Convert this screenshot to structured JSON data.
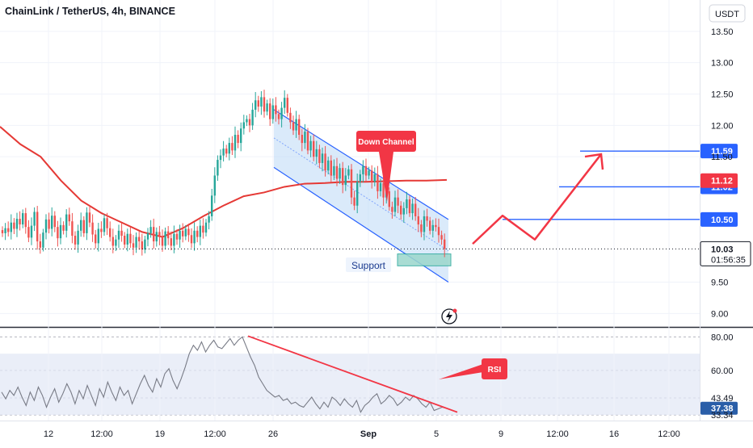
{
  "header": {
    "symbol": "ChainLink / TetherUS, 4h, BINANCE",
    "currency_button": "USDT"
  },
  "colors": {
    "up": "#26a69a",
    "down": "#ef5350",
    "ma": "#e53935",
    "channel": "#2962ff",
    "hline": "#2962ff",
    "arrow": "#f23645",
    "label_blue": "#2962ff",
    "label_red": "#f23645",
    "rsi": "#787b86"
  },
  "chart_data": [
    {
      "type": "candlestick",
      "title": "ChainLink / TetherUS, 4h, BINANCE",
      "ylim": [
        8.85,
        14.0
      ],
      "y_ticks": [
        "13.50",
        "13.00",
        "12.50",
        "12.00",
        "11.50",
        "9.50",
        "9.00"
      ],
      "x_ticks": [
        "12",
        "12:00",
        "19",
        "12:00",
        "26",
        "Sep",
        "5",
        "9",
        "12:00",
        "16",
        "12:00"
      ],
      "candles_close": [
        10.28,
        10.36,
        10.3,
        10.45,
        10.35,
        10.51,
        10.42,
        10.6,
        10.38,
        10.21,
        10.4,
        10.62,
        10.15,
        10.05,
        10.29,
        10.5,
        10.35,
        10.56,
        10.38,
        10.2,
        10.41,
        10.32,
        10.58,
        10.47,
        10.24,
        10.1,
        10.32,
        10.49,
        10.28,
        10.61,
        10.45,
        10.26,
        10.12,
        10.35,
        10.3,
        10.52,
        10.36,
        10.22,
        10.08,
        10.18,
        10.32,
        10.24,
        10.1,
        10.27,
        10.12,
        10.05,
        10.22,
        10.15,
        10.02,
        10.18,
        10.28,
        10.38,
        10.15,
        10.3,
        10.22,
        10.08,
        10.31,
        10.2,
        10.08,
        10.27,
        10.18,
        10.32,
        10.23,
        10.35,
        10.25,
        10.12,
        10.32,
        10.22,
        10.4,
        10.29,
        10.45,
        10.55,
        10.88,
        11.2,
        11.45,
        11.52,
        11.63,
        11.55,
        11.72,
        11.6,
        11.85,
        11.72,
        11.95,
        12.05,
        12.1,
        12.0,
        12.25,
        12.4,
        12.3,
        12.45,
        12.22,
        12.35,
        12.1,
        12.32,
        12.18,
        12.1,
        12.28,
        12.44,
        12.2,
        12.05,
        11.92,
        12.1,
        11.85,
        11.72,
        11.9,
        11.6,
        11.75,
        11.5,
        11.62,
        11.4,
        11.55,
        11.28,
        11.44,
        11.2,
        11.35,
        11.15,
        11.32,
        11.05,
        11.2,
        11.3,
        10.85,
        10.72,
        11.1,
        11.22,
        11.35,
        11.2,
        11.28,
        11.1,
        11.22,
        10.95,
        11.08,
        10.85,
        10.95,
        10.7,
        10.62,
        10.85,
        10.72,
        10.58,
        10.68,
        10.82,
        10.6,
        10.75,
        10.55,
        10.42,
        10.3,
        10.55,
        10.48,
        10.32,
        10.41,
        10.38,
        10.25,
        10.18,
        10.03
      ],
      "moving_average": [
        [
          0,
          11.98
        ],
        [
          20,
          11.7
        ],
        [
          40,
          11.5
        ],
        [
          60,
          11.12
        ],
        [
          80,
          10.8
        ],
        [
          100,
          10.6
        ],
        [
          120,
          10.45
        ],
        [
          140,
          10.3
        ],
        [
          160,
          10.22
        ],
        [
          180,
          10.36
        ],
        [
          200,
          10.55
        ],
        [
          220,
          10.72
        ],
        [
          240,
          10.87
        ],
        [
          260,
          10.93
        ],
        [
          280,
          11.02
        ],
        [
          300,
          11.07
        ],
        [
          320,
          11.08
        ],
        [
          340,
          11.1
        ],
        [
          360,
          11.1
        ],
        [
          380,
          11.11
        ],
        [
          400,
          11.12
        ],
        [
          420,
          11.12
        ],
        [
          440,
          11.13
        ]
      ],
      "annotations": [
        {
          "kind": "callout",
          "text": "Down Channel"
        },
        {
          "kind": "zone-label",
          "text": "Support"
        }
      ],
      "levels": [
        {
          "value": 11.59,
          "label": "11.59",
          "color": "#2962ff"
        },
        {
          "value": 11.02,
          "label": "11.02",
          "color": "#2962ff"
        },
        {
          "value": 10.5,
          "label": "10.50",
          "color": "#2962ff"
        }
      ],
      "price_badges": [
        {
          "value": 11.12,
          "label": "11.12",
          "color": "#f23645"
        },
        {
          "value": 10.03,
          "label": "10.03",
          "sub": "01:56:35",
          "color": "#ffffff"
        }
      ],
      "projection": [
        [
          10.11,
          0
        ],
        [
          10.56,
          1
        ],
        [
          10.18,
          2
        ],
        [
          11.54,
          3
        ]
      ]
    },
    {
      "type": "line",
      "title": "RSI",
      "ylim": [
        30,
        85
      ],
      "y_ticks": [
        "80.00",
        "60.00",
        "43.49",
        "33.34"
      ],
      "current_value": "37.38",
      "band": [
        33.34,
        70
      ],
      "values": [
        47,
        43,
        48,
        45,
        50,
        44,
        39,
        47,
        42,
        50,
        45,
        38,
        44,
        49,
        41,
        46,
        52,
        47,
        40,
        48,
        43,
        51,
        45,
        39,
        49,
        44,
        53,
        47,
        42,
        50,
        45,
        48,
        40,
        46,
        52,
        57,
        51,
        47,
        55,
        50,
        58,
        61,
        54,
        49,
        55,
        62,
        70,
        75,
        72,
        77,
        71,
        75,
        78,
        74,
        73,
        76,
        79,
        75,
        78,
        80,
        74,
        68,
        63,
        56,
        52,
        48,
        46,
        44,
        45,
        42,
        43,
        40,
        41,
        39,
        38,
        41,
        44,
        40,
        37,
        41,
        38,
        44,
        42,
        39,
        43,
        40,
        38,
        42,
        35,
        39,
        41,
        44,
        46,
        40,
        42,
        45,
        43,
        39,
        41,
        44,
        42,
        45,
        43,
        40,
        38,
        41,
        36,
        37,
        38,
        37.38
      ],
      "trendline_label": "RSI"
    }
  ]
}
